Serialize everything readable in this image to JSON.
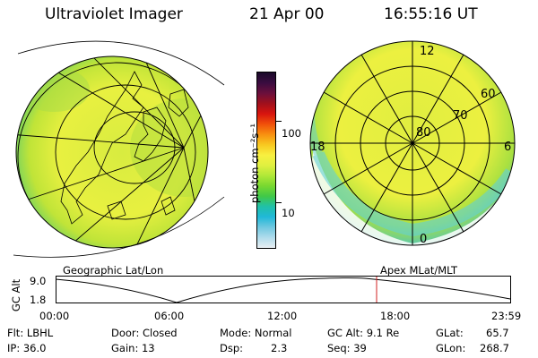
{
  "header": {
    "instrument": "Ultraviolet Imager",
    "date": "21 Apr 00",
    "time": "16:55:16 UT"
  },
  "colorbar": {
    "unit_label": "photon cm⁻²s⁻¹",
    "ticks": [
      "100",
      "10"
    ],
    "colors": [
      "#1a0a2a",
      "#3a0c40",
      "#6a0f3c",
      "#a0101c",
      "#d8140e",
      "#f0500a",
      "#f89010",
      "#f8c820",
      "#f8f040",
      "#e0f040",
      "#b0e838",
      "#78d830",
      "#40c848",
      "#20c0a8",
      "#20b8d8",
      "#70c8e0",
      "#b0dcec",
      "#e8eef2"
    ]
  },
  "left_map": {
    "caption": "Geographic Lat/Lon"
  },
  "right_map": {
    "caption": "Apex MLat/MLT",
    "mlt_labels": {
      "top": "12",
      "left": "18",
      "right": "6",
      "bottom": "0"
    },
    "mlat_labels": [
      "80",
      "70",
      "60"
    ]
  },
  "altitude_plot": {
    "axis_title": "GC Alt",
    "y_ticks": [
      "9.0",
      "1.8"
    ],
    "x_ticks": [
      "00:00",
      "06:00",
      "12:00",
      "18:00",
      "23:59"
    ],
    "current_marker_color": "#d02020"
  },
  "info": {
    "flt": "Flt: LBHL",
    "ip": "IP: 36.0",
    "door": "Door: Closed",
    "gain": "Gain: 13",
    "mode": "Mode: Normal",
    "dsp_label": "Dsp:",
    "dsp_value": "2.3",
    "gc_alt": "GC Alt: 9.1 Re",
    "seq": "Seq: 39",
    "glat_label": "GLat:",
    "glat_value": "65.7",
    "glon_label": "GLon:",
    "glon_value": "268.7"
  }
}
